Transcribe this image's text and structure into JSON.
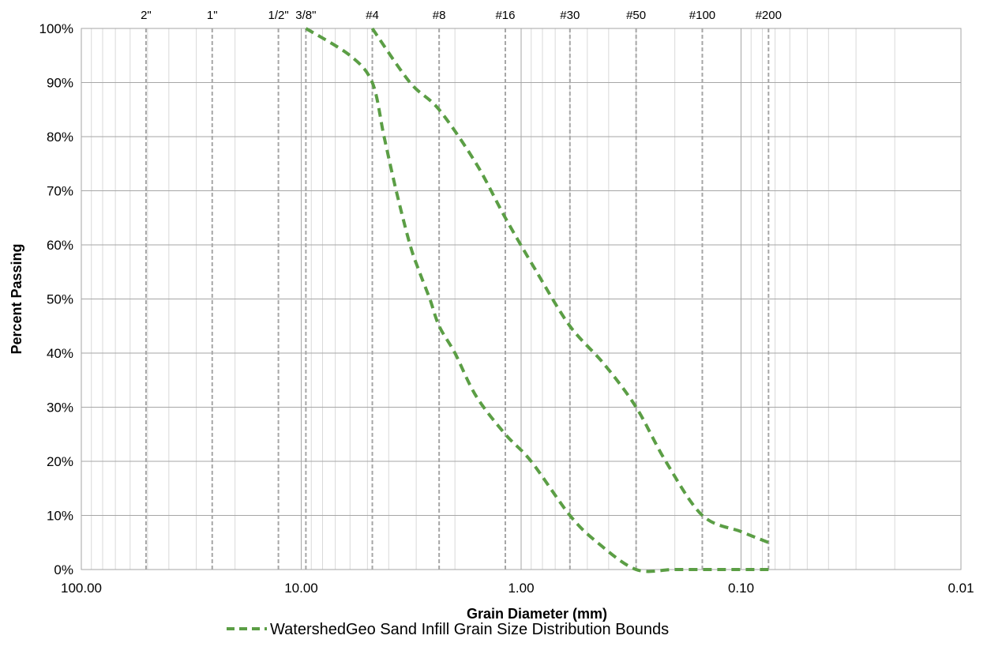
{
  "chart_data": {
    "type": "line",
    "xscale": "log",
    "x_reversed": true,
    "xlim": [
      100,
      0.01
    ],
    "ylim": [
      0,
      100
    ],
    "xlabel": "Grain Diameter (mm)",
    "ylabel": "Percent Passing",
    "x_tick_labels": [
      {
        "value": 100,
        "label": "100.00"
      },
      {
        "value": 10,
        "label": "10.00"
      },
      {
        "value": 1,
        "label": "1.00"
      },
      {
        "value": 0.1,
        "label": "0.10"
      },
      {
        "value": 0.01,
        "label": "0.01"
      }
    ],
    "y_tick_labels": [
      {
        "value": 0,
        "label": "0%"
      },
      {
        "value": 10,
        "label": "10%"
      },
      {
        "value": 20,
        "label": "20%"
      },
      {
        "value": 30,
        "label": "30%"
      },
      {
        "value": 40,
        "label": "40%"
      },
      {
        "value": 50,
        "label": "50%"
      },
      {
        "value": 60,
        "label": "60%"
      },
      {
        "value": 70,
        "label": "70%"
      },
      {
        "value": 80,
        "label": "80%"
      },
      {
        "value": 90,
        "label": "90%"
      },
      {
        "value": 100,
        "label": "100%"
      }
    ],
    "sieves": [
      {
        "label": "2\"",
        "size_mm": 50.8
      },
      {
        "label": "1\"",
        "size_mm": 25.4
      },
      {
        "label": "1/2\"",
        "size_mm": 12.7
      },
      {
        "label": "3/8\"",
        "size_mm": 9.525
      },
      {
        "label": "#4",
        "size_mm": 4.75
      },
      {
        "label": "#8",
        "size_mm": 2.36
      },
      {
        "label": "#16",
        "size_mm": 1.18
      },
      {
        "label": "#30",
        "size_mm": 0.6
      },
      {
        "label": "#50",
        "size_mm": 0.3
      },
      {
        "label": "#100",
        "size_mm": 0.15
      },
      {
        "label": "#200",
        "size_mm": 0.075
      }
    ],
    "series": [
      {
        "name": "WatershedGeo Sand Infill Grain Size Distribution Bounds",
        "color": "#5b9e45",
        "dash": "dashed",
        "lines": [
          {
            "x": [
              9.525,
              6.0,
              4.75,
              4.2,
              3.7,
              3.2,
              2.9,
              2.6,
              2.36,
              2.0,
              1.6,
              1.18,
              0.9,
              0.6,
              0.45,
              0.3,
              0.2,
              0.12,
              0.075
            ],
            "y": [
              100,
              95,
              90,
              80,
              70,
              60,
              55,
              50,
              45,
              40,
              32,
              25,
              20,
              10,
              5,
              0,
              0,
              0,
              0
            ]
          },
          {
            "x": [
              4.75,
              3.2,
              2.36,
              1.6,
              1.18,
              0.85,
              0.6,
              0.42,
              0.3,
              0.22,
              0.15,
              0.1,
              0.075
            ],
            "y": [
              100,
              90,
              85,
              75,
              65,
              55,
              45,
              38,
              30,
              20,
              10,
              7,
              5
            ]
          }
        ]
      }
    ],
    "grid": true,
    "legend_position": "bottom-center"
  }
}
